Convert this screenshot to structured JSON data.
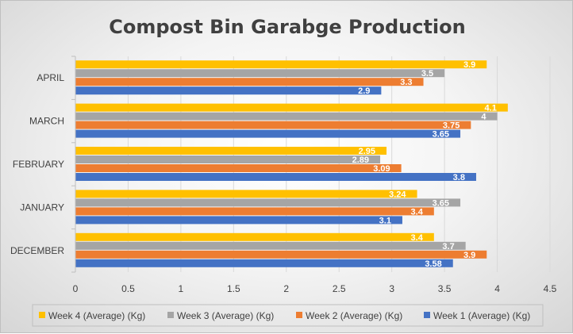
{
  "chart_data": {
    "type": "bar",
    "orientation": "horizontal",
    "title": "Compost Bin Garabge Production",
    "categories": [
      "DECEMBER",
      "JANUARY",
      "FEBRUARY",
      "MARCH",
      "APRIL"
    ],
    "series": [
      {
        "name": "Week 1 (Average) (Kg)",
        "color": "#4472c4",
        "values": [
          3.58,
          3.1,
          3.8,
          3.65,
          2.9
        ],
        "labels": [
          "3.58",
          "3.1",
          "3.8",
          "3.65",
          "2.9"
        ]
      },
      {
        "name": "Week 2 (Average) (Kg)",
        "color": "#ed7d31",
        "values": [
          3.9,
          3.4,
          3.09,
          3.75,
          3.3
        ],
        "labels": [
          "3.9",
          "3.4",
          "3.09",
          "3.75",
          "3.3"
        ]
      },
      {
        "name": "Week 3 (Average) (Kg)",
        "color": "#a5a5a5",
        "values": [
          3.7,
          3.65,
          2.89,
          4,
          3.5
        ],
        "labels": [
          "3.7",
          "3.65",
          "2.89",
          "4",
          "3.5"
        ]
      },
      {
        "name": "Week 4 (Average) (Kg)",
        "color": "#ffc000",
        "values": [
          3.4,
          3.24,
          2.95,
          4.1,
          3.9
        ],
        "labels": [
          "3.4",
          "3.24",
          "2.95",
          "4.1",
          "3.9"
        ]
      }
    ],
    "xlim": [
      0,
      4.5
    ],
    "xticks": [
      "0",
      "0.5",
      "1",
      "1.5",
      "2",
      "2.5",
      "3",
      "3.5",
      "4",
      "4.5"
    ],
    "grid": true,
    "legend_position": "bottom",
    "legend_order": [
      "Week 4 (Average) (Kg)",
      "Week 3 (Average) (Kg)",
      "Week 2 (Average) (Kg)",
      "Week 1 (Average) (Kg)"
    ]
  }
}
